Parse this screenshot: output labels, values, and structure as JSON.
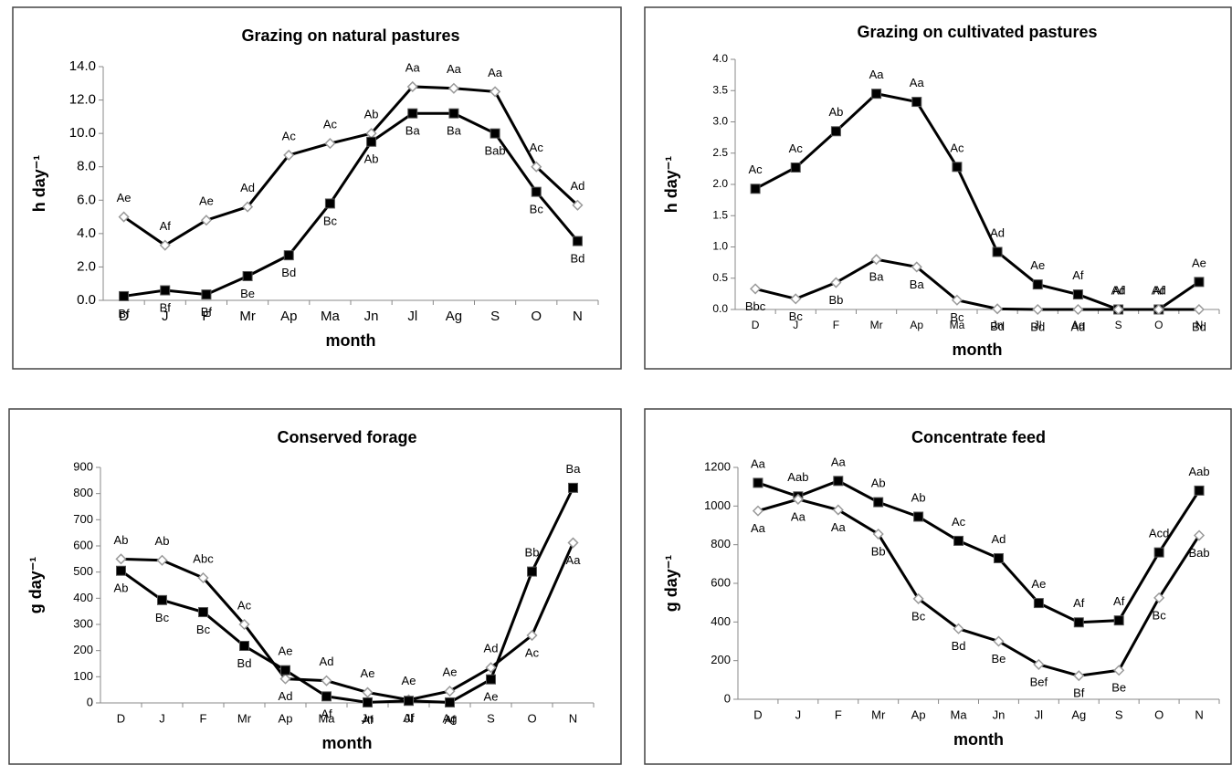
{
  "chart_data": [
    {
      "type": "line",
      "title": "Grazing on natural pastures",
      "x_label": "month",
      "y_label": "h day⁻¹",
      "categories": [
        "D",
        "J",
        "F",
        "Mr",
        "Ap",
        "Ma",
        "Jn",
        "Jl",
        "Ag",
        "S",
        "O",
        "N"
      ],
      "ylim": [
        0,
        14
      ],
      "yticks": [
        {
          "value": 0,
          "label": "0.0"
        },
        {
          "value": 2,
          "label": "2.0"
        },
        {
          "value": 4,
          "label": "4.0"
        },
        {
          "value": 6,
          "label": "6.0"
        },
        {
          "value": 8,
          "label": "8.0"
        },
        {
          "value": 10,
          "label": "10.0"
        },
        {
          "value": 12,
          "label": "12.0"
        },
        {
          "value": 14,
          "label": "14.0"
        }
      ],
      "series": [
        {
          "color": "#000000",
          "marker": "diamond",
          "values": [
            5.0,
            3.3,
            4.8,
            5.6,
            8.7,
            9.4,
            10.0,
            12.8,
            12.7,
            12.5,
            8.0,
            5.7
          ],
          "value_labels": [
            "Ae",
            "Af",
            "Ae",
            "Ad",
            "Ac",
            "Ac",
            "Ab",
            "Aa",
            "Aa",
            "Aa",
            "Ac",
            "Ad"
          ]
        },
        {
          "color": "#000000",
          "marker": "square",
          "values": [
            0.25,
            0.6,
            0.35,
            1.45,
            2.7,
            5.8,
            9.5,
            11.2,
            11.2,
            10.0,
            6.5,
            3.55
          ],
          "value_labels": [
            "Bf",
            "Bf",
            "Bf",
            "Be",
            "Bd",
            "Bc",
            "Ab",
            "Ba",
            "Ba",
            "Bab",
            "Bc",
            "Bd"
          ]
        }
      ]
    },
    {
      "type": "line",
      "title": "Grazing on cultivated pastures",
      "x_label": "month",
      "y_label": "h day⁻¹",
      "categories": [
        "D",
        "J",
        "F",
        "Mr",
        "Ap",
        "Ma",
        "Jn",
        "Jl",
        "Ag",
        "S",
        "O",
        "N"
      ],
      "ylim": [
        0,
        4
      ],
      "yticks": [
        {
          "value": 0,
          "label": "0.0"
        },
        {
          "value": 0.5,
          "label": "0.5"
        },
        {
          "value": 1,
          "label": "1.0"
        },
        {
          "value": 1.5,
          "label": "1.5"
        },
        {
          "value": 2,
          "label": "2.0"
        },
        {
          "value": 2.5,
          "label": "2.5"
        },
        {
          "value": 3,
          "label": "3.0"
        },
        {
          "value": 3.5,
          "label": "3.5"
        },
        {
          "value": 4,
          "label": "4.0"
        }
      ],
      "series": [
        {
          "color": "#000000",
          "marker": "square",
          "values": [
            1.93,
            2.27,
            2.85,
            3.45,
            3.32,
            2.28,
            0.92,
            0.4,
            0.24,
            0,
            0,
            0.44
          ],
          "value_labels": [
            "Ac",
            "Ac",
            "Ab",
            "Aa",
            "Aa",
            "Ac",
            "Ad",
            "Ae",
            "Af",
            "Af",
            "Af",
            "Ae"
          ]
        },
        {
          "color": "#000000",
          "marker": "diamond",
          "values": [
            0.33,
            0.17,
            0.43,
            0.8,
            0.68,
            0.15,
            0.01,
            0,
            0,
            0,
            0,
            0
          ],
          "value_labels": [
            "Bbc",
            "Bc",
            "Bb",
            "Ba",
            "Ba",
            "Bc",
            "Bd",
            "Bd",
            "Ad",
            "Ad",
            "Ad",
            "Bd"
          ]
        }
      ]
    },
    {
      "type": "line",
      "title": "Conserved forage",
      "x_label": "month",
      "y_label": "g day⁻¹",
      "categories": [
        "D",
        "J",
        "F",
        "Mr",
        "Ap",
        "Ma",
        "Jn",
        "Jl",
        "Ag",
        "S",
        "O",
        "N"
      ],
      "ylim": [
        0,
        900
      ],
      "yticks": [
        0,
        100,
        200,
        300,
        400,
        500,
        600,
        700,
        800,
        900
      ],
      "series": [
        {
          "color": "#000000",
          "marker": "diamond",
          "values": [
            550,
            545,
            478,
            300,
            92,
            85,
            40,
            12,
            45,
            135,
            258,
            612
          ],
          "value_labels": [
            "Ab",
            "Ab",
            "Abc",
            "Ac",
            "Ad",
            "Ad",
            "Ae",
            "Ae",
            "Ae",
            "Ad",
            "Ac",
            "Aa"
          ]
        },
        {
          "color": "#000000",
          "marker": "square",
          "values": [
            505,
            393,
            347,
            218,
            125,
            25,
            2,
            8,
            2,
            90,
            502,
            822
          ],
          "value_labels": [
            "Ab",
            "Bc",
            "Bc",
            "Bd",
            "Ae",
            "Af",
            "Af",
            "Af",
            "Af",
            "Ae",
            "Bb",
            "Ba"
          ]
        }
      ]
    },
    {
      "type": "line",
      "title": "Concentrate feed",
      "x_label": "month",
      "y_label": "g day⁻¹",
      "categories": [
        "D",
        "J",
        "F",
        "Mr",
        "Ap",
        "Ma",
        "Jn",
        "Jl",
        "Ag",
        "S",
        "O",
        "N"
      ],
      "ylim": [
        0,
        1200
      ],
      "yticks": [
        0,
        200,
        400,
        600,
        800,
        1000,
        1200
      ],
      "series": [
        {
          "color": "#000000",
          "marker": "square",
          "values": [
            1120,
            1050,
            1130,
            1020,
            945,
            820,
            730,
            498,
            398,
            408,
            760,
            1080
          ],
          "value_labels": [
            "Aa",
            "Aab",
            "Aa",
            "Ab",
            "Ab",
            "Ac",
            "Ad",
            "Ae",
            "Af",
            "Af",
            "Acd",
            "Aab"
          ]
        },
        {
          "color": "#000000",
          "marker": "diamond",
          "values": [
            975,
            1035,
            980,
            855,
            520,
            365,
            300,
            180,
            122,
            150,
            525,
            848
          ],
          "value_labels": [
            "Aa",
            "Aa",
            "Aa",
            "Bb",
            "Bc",
            "Bd",
            "Be",
            "Bef",
            "Bf",
            "Be",
            "Bc",
            "Bab"
          ]
        }
      ]
    }
  ]
}
